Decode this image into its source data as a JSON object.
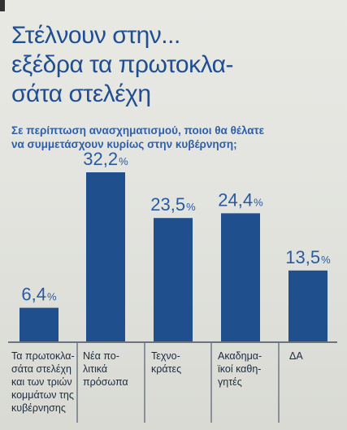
{
  "header": {
    "title_lines": [
      "Στέλνουν στην...",
      "εξέδρα τα πρωτοκλα-",
      "σάτα στελέχη"
    ],
    "question_lines": [
      "Σε περίπτωση ανασχηματισμού, ποιοι θα θέλατε",
      "να συμμετάσχουν κυρίως στην κυβέρνηση;"
    ]
  },
  "chart_data": {
    "type": "bar",
    "categories": [
      "Τα πρωτοκλα-\nσάτα στελέχη\nκαι των τριών\nκομμάτων της\nκυβέρνησης",
      "Νέα πο-\nλιτικά\nπρόσωπα",
      "Τεχνο-\nκράτες",
      "Ακαδημα-\nϊκοί καθη-\nγητές",
      "ΔΑ"
    ],
    "values": [
      6.4,
      32.2,
      23.5,
      24.4,
      13.5
    ],
    "value_labels": [
      "6,4",
      "32,2",
      "23,5",
      "24,4",
      "13,5"
    ],
    "unit": "%",
    "bar_color": "#1f4f8c",
    "value_color": "#2a5aa0",
    "ylim": [
      0,
      32.2
    ]
  }
}
